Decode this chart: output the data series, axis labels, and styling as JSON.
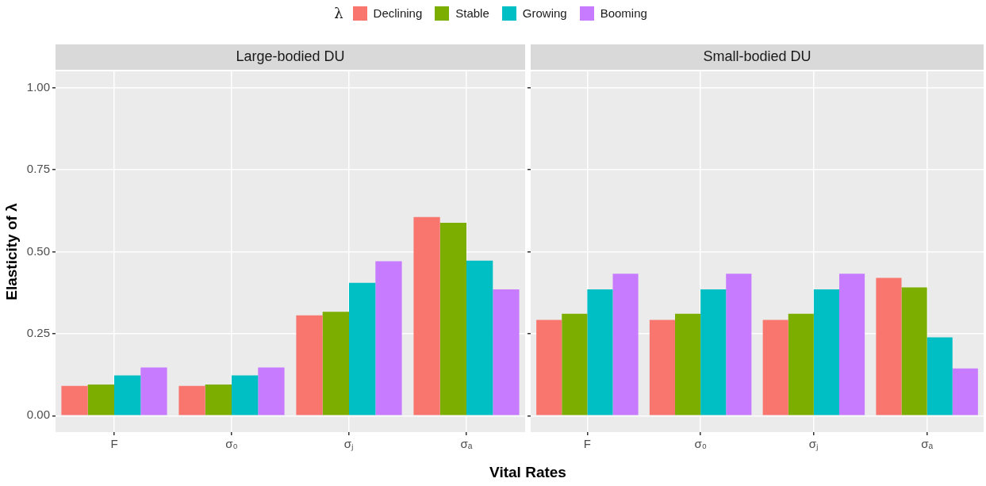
{
  "chart_data": [
    {
      "type": "bar",
      "title": "Large-bodied DU",
      "xlabel": "Vital Rates",
      "ylabel": "Elasticity of λ",
      "legend_title": "λ",
      "legend": "top",
      "grid": true,
      "categories": [
        "F",
        "σ₀",
        "σⱼ",
        "σₐ"
      ],
      "series": [
        {
          "name": "Declining",
          "color": "#f8766d",
          "values": [
            0.091,
            0.091,
            0.306,
            0.606
          ]
        },
        {
          "name": "Stable",
          "color": "#7cae00",
          "values": [
            0.095,
            0.095,
            0.317,
            0.588
          ]
        },
        {
          "name": "Growing",
          "color": "#00bfc4",
          "values": [
            0.123,
            0.123,
            0.405,
            0.473
          ]
        },
        {
          "name": "Booming",
          "color": "#c77cff",
          "values": [
            0.147,
            0.147,
            0.471,
            0.385
          ]
        }
      ],
      "ylim": [
        -0.05,
        1.05
      ],
      "yticks": [
        {
          "value": 0,
          "label": "0.00"
        },
        {
          "value": 0.25,
          "label": "0.25"
        },
        {
          "value": 0.5,
          "label": "0.50"
        },
        {
          "value": 0.75,
          "label": "0.75"
        },
        {
          "value": 1,
          "label": "1.00"
        }
      ]
    },
    {
      "type": "bar",
      "title": "Small-bodied DU",
      "grid": true,
      "tick_labels": "x",
      "categories": [
        "F",
        "σ₀",
        "σⱼ",
        "σₐ"
      ],
      "series": [
        {
          "color": "#f8766d",
          "values": [
            0.292,
            0.292,
            0.292,
            0.42
          ]
        },
        {
          "color": "#7cae00",
          "values": [
            0.311,
            0.311,
            0.311,
            0.391
          ]
        },
        {
          "color": "#00bfc4",
          "values": [
            0.385,
            0.385,
            0.385,
            0.239
          ]
        },
        {
          "color": "#c77cff",
          "values": [
            0.433,
            0.433,
            0.433,
            0.144
          ]
        }
      ],
      "ylim": [
        -0.05,
        1.05
      ],
      "yticks": [
        {
          "value": 0,
          "label": null
        },
        {
          "value": 0.25,
          "label": null
        },
        {
          "value": 0.5,
          "label": null
        },
        {
          "value": 0.75,
          "label": null
        },
        {
          "value": 1,
          "label": null
        }
      ]
    }
  ]
}
